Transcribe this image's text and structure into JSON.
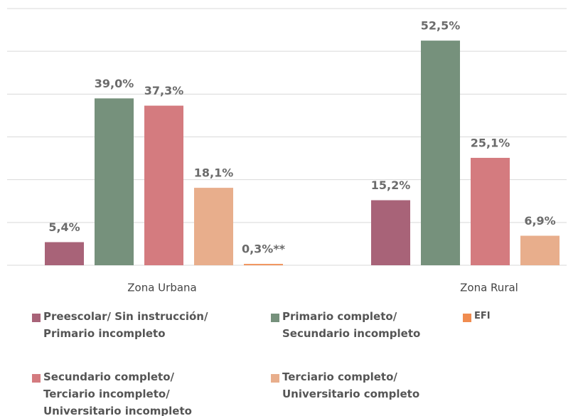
{
  "chart_data": {
    "type": "bar",
    "categories": [
      "Zona Urbana",
      "Zona Rural"
    ],
    "series": [
      {
        "name": "Preescolar/ Sin instrucción/\nPrimario incompleto",
        "color": "#a86378",
        "values": [
          5.4,
          15.2
        ],
        "value_labels": [
          "5,4%",
          "15,2%"
        ]
      },
      {
        "name": "Primario completo/\nSecundario incompleto",
        "color": "#76917c",
        "values": [
          39.0,
          52.5
        ],
        "value_labels": [
          "39,0%",
          "52,5%"
        ]
      },
      {
        "name": "Secundario completo/\nTerciario incompleto/\nUniversitario incompleto",
        "color": "#d47b7f",
        "values": [
          37.3,
          25.1
        ],
        "value_labels": [
          "37,3%",
          "25,1%"
        ]
      },
      {
        "name": "Terciario completo/\nUniversitario completo",
        "color": "#e8ae8c",
        "values": [
          18.1,
          6.9
        ],
        "value_labels": [
          "18,1%",
          "6,9%"
        ]
      },
      {
        "name": "EFI",
        "color": "#f08c50",
        "values": [
          0.3,
          null
        ],
        "value_labels": [
          "0,3%**",
          null
        ]
      }
    ],
    "ylim": [
      0,
      60
    ],
    "yticks": [
      0,
      10,
      20,
      30,
      40,
      50,
      60
    ],
    "grid": true,
    "ytick_labels": false
  }
}
